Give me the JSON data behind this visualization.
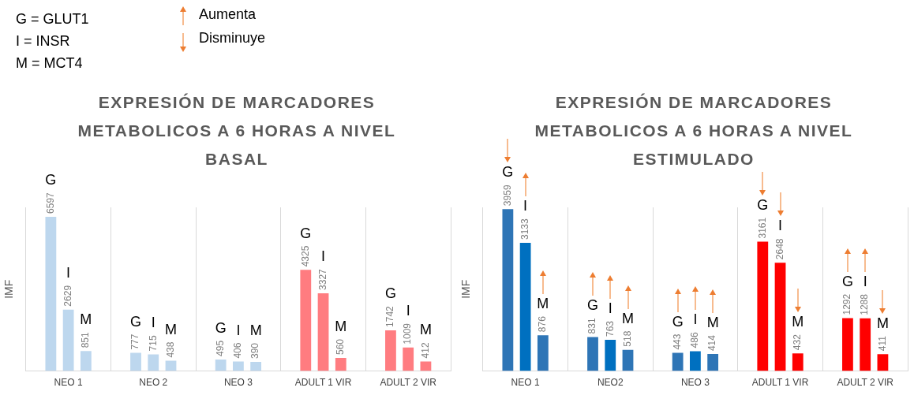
{
  "chart_data": [
    {
      "type": "bar",
      "title": "EXPRESIÓN DE MARCADORES METABOLICOS A 6 HORAS A NIVEL BASAL",
      "ylabel": "IMF",
      "categories": [
        "NEO 1",
        "NEO 2",
        "NEO 3",
        "ADULT 1 VIR",
        "ADULT 2 VIR"
      ],
      "series": [
        {
          "name": "G",
          "colors": [
            "#bdd7ee",
            "#bdd7ee",
            "#bdd7ee",
            "#ff7c80",
            "#ff7c80"
          ],
          "values": [
            6597,
            777,
            495,
            4325,
            1742
          ]
        },
        {
          "name": "I",
          "colors": [
            "#bdd7ee",
            "#bdd7ee",
            "#bdd7ee",
            "#ff7c80",
            "#ff7c80"
          ],
          "values": [
            2629,
            715,
            406,
            3327,
            1009
          ]
        },
        {
          "name": "M",
          "colors": [
            "#bdd7ee",
            "#bdd7ee",
            "#bdd7ee",
            "#ff7c80",
            "#ff7c80"
          ],
          "values": [
            851,
            438,
            390,
            560,
            412
          ]
        }
      ],
      "data_labels": true,
      "grid": "x",
      "legend": false,
      "annotations": [
        "G = GLUT1",
        "I = INSR",
        "M = MCT4",
        "Aumenta",
        "Disminuye"
      ]
    },
    {
      "type": "bar",
      "title": "EXPRESIÓN DE MARCADORES METABOLICOS A 6 HORAS A NIVEL ESTIMULADO",
      "ylabel": "IMF",
      "categories": [
        "NEO 1",
        "NEO2",
        "NEO 3",
        "ADULT 1 VIR",
        "ADULT 2 VIR"
      ],
      "series": [
        {
          "name": "G",
          "colors": [
            "#2e75b6",
            "#2e75b6",
            "#2e75b6",
            "#ff0000",
            "#ff0000"
          ],
          "values": [
            3959,
            831,
            443,
            3161,
            1292
          ]
        },
        {
          "name": "I",
          "colors": [
            "#0070c0",
            "#0070c0",
            "#0070c0",
            "#ff0000",
            "#ff0000"
          ],
          "values": [
            3133,
            763,
            486,
            2648,
            1288
          ]
        },
        {
          "name": "M",
          "colors": [
            "#2e75b6",
            "#2e75b6",
            "#2e75b6",
            "#ff0000",
            "#ff0000"
          ],
          "values": [
            876,
            518,
            414,
            432,
            411
          ]
        }
      ],
      "data_labels": true,
      "grid": "x",
      "legend": false
    }
  ]
}
